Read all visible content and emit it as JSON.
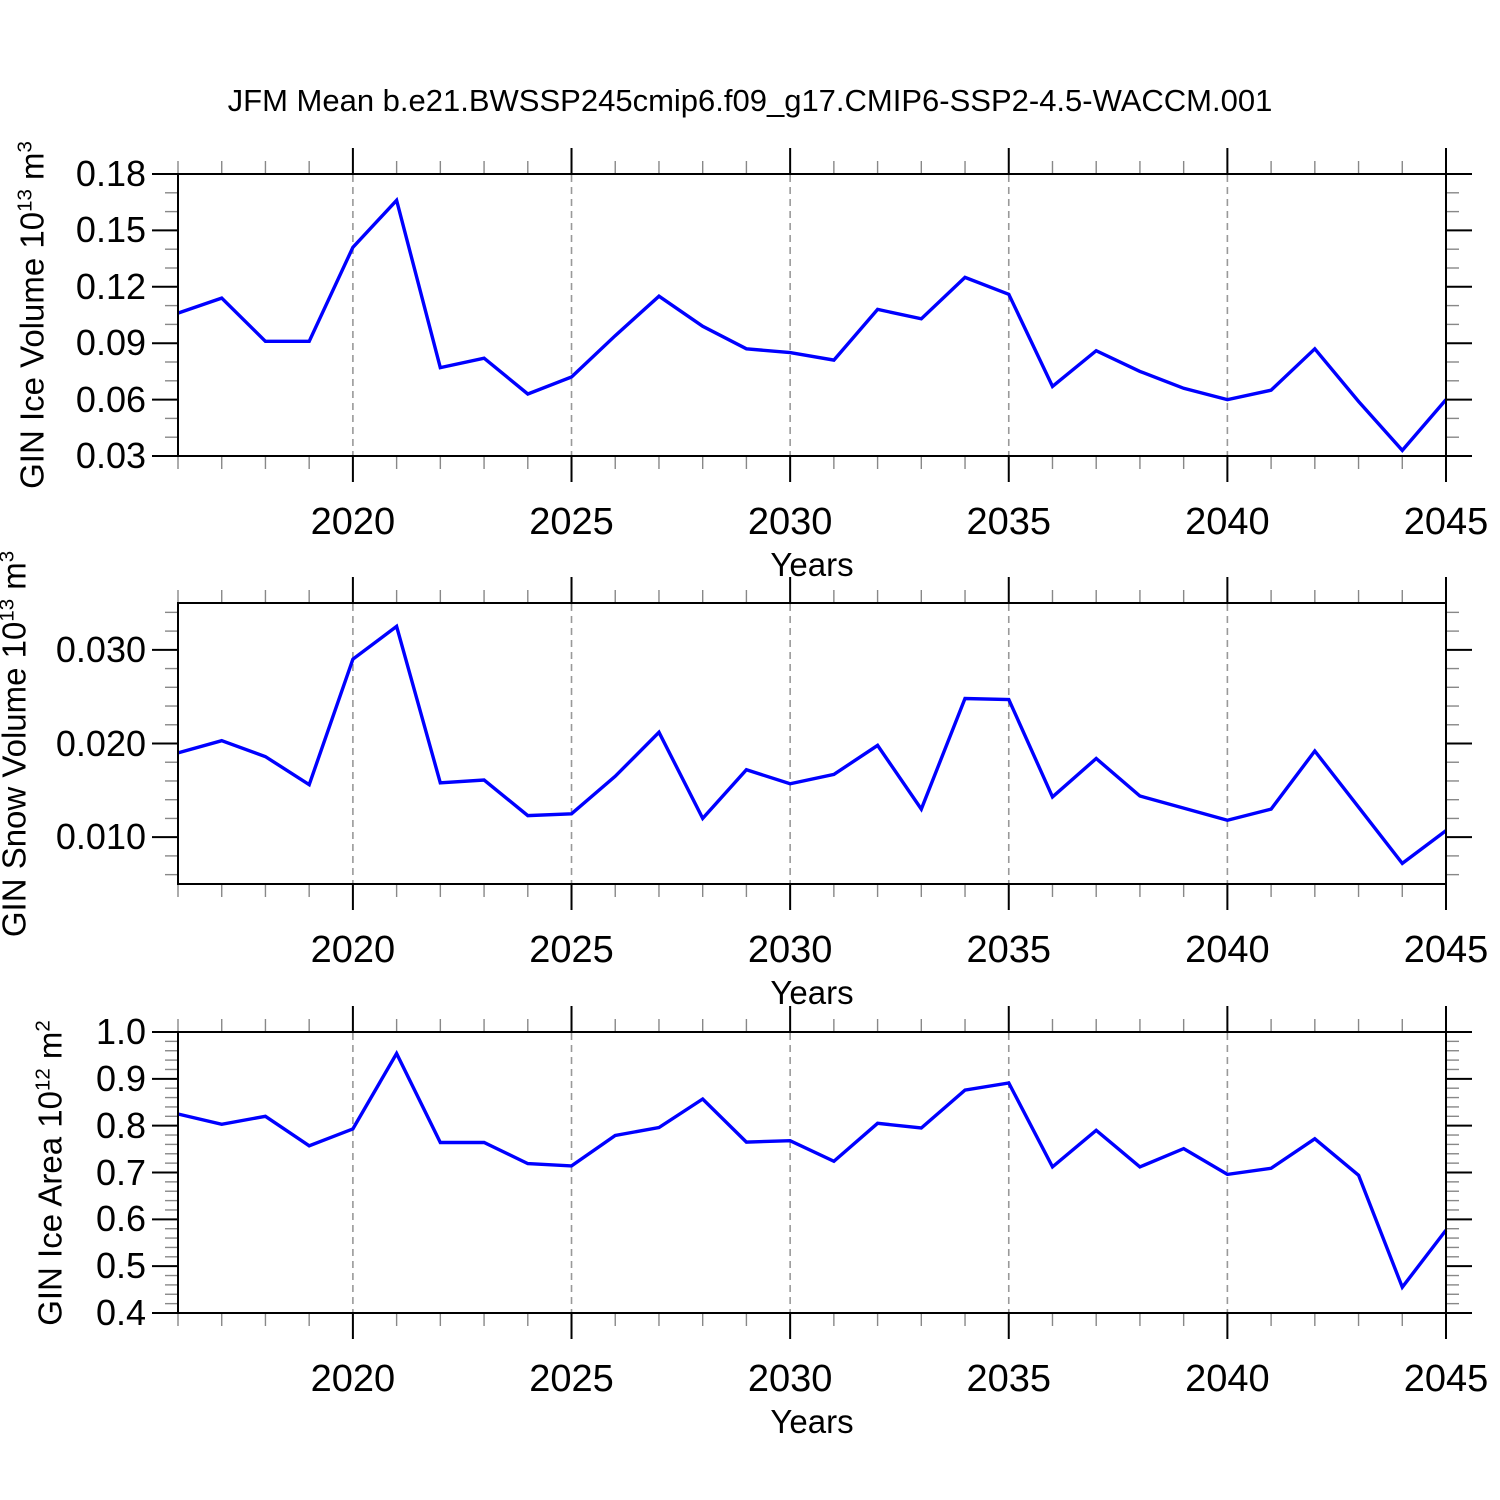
{
  "title": "JFM Mean b.e21.BWSSP245cmip6.f09_g17.CMIP6-SSP2-4.5-WACCM.001",
  "colors": {
    "line": "#0000ff",
    "grid": "#999999",
    "axis": "#000000",
    "minor_tick": "#888888",
    "background": "#ffffff"
  },
  "x_axis": {
    "label": "Years",
    "start": 2016,
    "end": 2045,
    "years": [
      2016,
      2017,
      2018,
      2019,
      2020,
      2021,
      2022,
      2023,
      2024,
      2025,
      2026,
      2027,
      2028,
      2029,
      2030,
      2031,
      2032,
      2033,
      2034,
      2035,
      2036,
      2037,
      2038,
      2039,
      2040,
      2041,
      2042,
      2043,
      2044,
      2045
    ],
    "major_tick_years": [
      2020,
      2025,
      2030,
      2035,
      2040,
      2045
    ],
    "tick_labels": [
      "2020",
      "2025",
      "2030",
      "2035",
      "2040",
      "2045"
    ],
    "gridline_years": [
      2020,
      2025,
      2030,
      2035,
      2040
    ],
    "minor_tick_step": 1
  },
  "chart_data": [
    {
      "type": "line",
      "ylabel": "GIN Ice Volume 10^13 m^3",
      "xlabel": "Years",
      "ylim": [
        0.03,
        0.18
      ],
      "ytick_values": [
        0.03,
        0.06,
        0.09,
        0.12,
        0.15,
        0.18
      ],
      "ytick_labels": [
        "0.03",
        "0.06",
        "0.09",
        "0.12",
        "0.15",
        "0.18"
      ],
      "yminor_step": 0.01,
      "grid": "vertical-dashed",
      "legend": "none",
      "values": [
        0.106,
        0.114,
        0.091,
        0.091,
        0.141,
        0.166,
        0.077,
        0.082,
        0.063,
        0.072,
        0.094,
        0.115,
        0.099,
        0.087,
        0.085,
        0.081,
        0.108,
        0.103,
        0.125,
        0.116,
        0.067,
        0.086,
        0.075,
        0.066,
        0.06,
        0.065,
        0.087,
        0.059,
        0.033,
        0.06
      ]
    },
    {
      "type": "line",
      "ylabel": "GIN Snow Volume 10^13 m^3",
      "xlabel": "Years",
      "ylim": [
        0.005,
        0.035
      ],
      "ytick_values": [
        0.01,
        0.02,
        0.03
      ],
      "ytick_labels": [
        "0.010",
        "0.020",
        "0.030"
      ],
      "yminor_step": 0.002,
      "grid": "vertical-dashed",
      "legend": "none",
      "values": [
        0.019,
        0.0203,
        0.0186,
        0.0156,
        0.029,
        0.0325,
        0.0158,
        0.0161,
        0.0123,
        0.0125,
        0.0165,
        0.0212,
        0.012,
        0.0172,
        0.0157,
        0.0167,
        0.0198,
        0.013,
        0.0248,
        0.0247,
        0.0143,
        0.0184,
        0.0144,
        0.0131,
        0.0118,
        0.013,
        0.0192,
        0.0132,
        0.0072,
        0.0107
      ]
    },
    {
      "type": "line",
      "ylabel": "GIN Ice Area 10^12 m^2",
      "xlabel": "Years",
      "ylim": [
        0.4,
        1.0
      ],
      "ytick_values": [
        0.4,
        0.5,
        0.6,
        0.7,
        0.8,
        0.9,
        1.0
      ],
      "ytick_labels": [
        "0.4",
        "0.5",
        "0.6",
        "0.7",
        "0.8",
        "0.9",
        "1.0"
      ],
      "yminor_step": 0.02,
      "grid": "vertical-dashed",
      "legend": "none",
      "values": [
        0.825,
        0.803,
        0.82,
        0.757,
        0.793,
        0.954,
        0.764,
        0.764,
        0.719,
        0.714,
        0.779,
        0.796,
        0.857,
        0.765,
        0.768,
        0.724,
        0.805,
        0.795,
        0.876,
        0.891,
        0.712,
        0.79,
        0.712,
        0.751,
        0.696,
        0.709,
        0.772,
        0.694,
        0.455,
        0.577
      ]
    }
  ]
}
